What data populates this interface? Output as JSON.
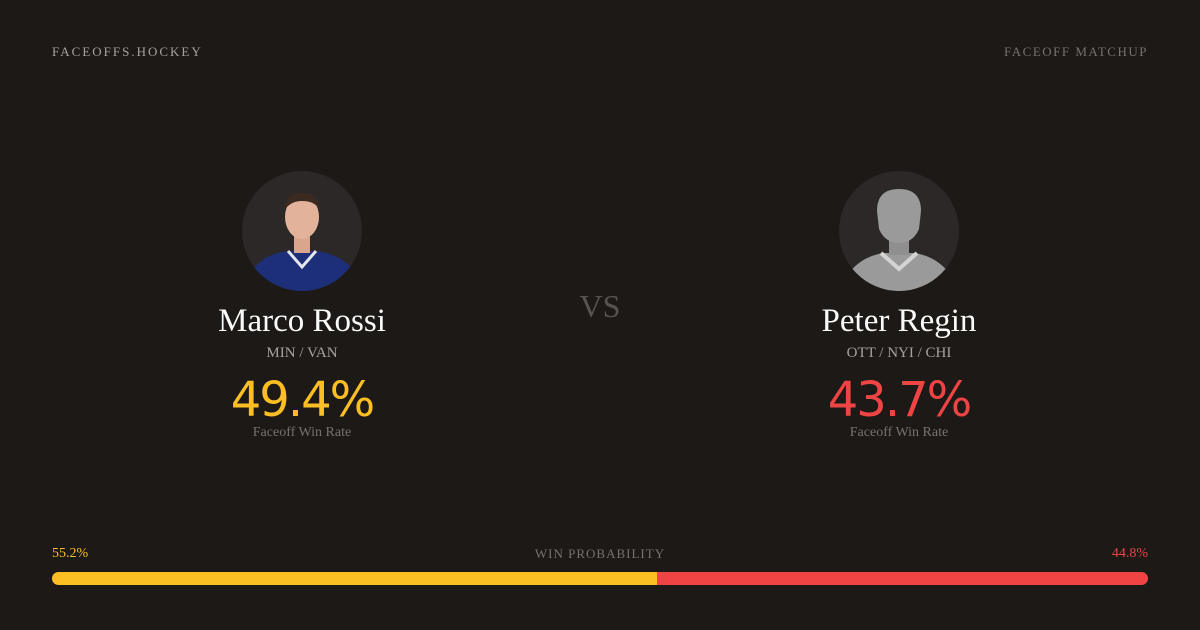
{
  "header": {
    "brand": "FACEOFFS.HOCKEY",
    "tag": "FACEOFF MATCHUP"
  },
  "colors": {
    "background": "#1c1917",
    "player1": "#fbbf24",
    "player2": "#ef4444"
  },
  "player1": {
    "name": "Marco Rossi",
    "teams": "MIN / VAN",
    "win_rate": "49.4%",
    "win_rate_label": "Faceoff Win Rate",
    "avatar": "player-photo"
  },
  "player2": {
    "name": "Peter Regin",
    "teams": "OTT / NYI / CHI",
    "win_rate": "43.7%",
    "win_rate_label": "Faceoff Win Rate",
    "avatar": "silhouette-placeholder"
  },
  "vs": "VS",
  "probability": {
    "title": "WIN PROBABILITY",
    "player1": "55.2%",
    "player2": "44.8%",
    "player1_value": 55.2,
    "player2_value": 44.8
  }
}
